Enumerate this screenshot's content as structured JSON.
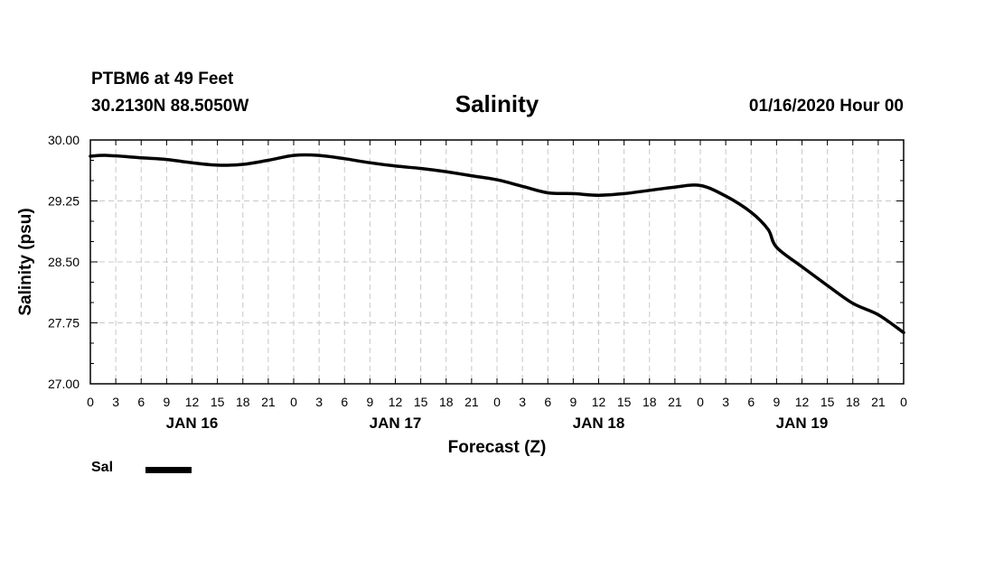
{
  "header": {
    "station": "PTBM6 at 49 Feet",
    "coordinates": "30.2130N 88.5050W",
    "issued": "01/16/2020 Hour 00"
  },
  "chart_data": {
    "type": "line",
    "title": "Salinity",
    "xlabel": "Forecast (Z)",
    "ylabel": "Salinity (psu)",
    "ylim": [
      27.0,
      30.0
    ],
    "yticks": [
      "30.00",
      "29.25",
      "28.50",
      "27.75",
      "27.00"
    ],
    "xlim_hours": [
      0,
      96
    ],
    "xtick_labels": [
      "0",
      "3",
      "6",
      "9",
      "12",
      "15",
      "18",
      "21",
      "0",
      "3",
      "6",
      "9",
      "12",
      "15",
      "18",
      "21",
      "0",
      "3",
      "6",
      "9",
      "12",
      "15",
      "18",
      "21",
      "0",
      "3",
      "6",
      "9",
      "12",
      "15",
      "18",
      "21",
      "0"
    ],
    "date_labels": [
      {
        "label": "JAN 16",
        "hour": 12
      },
      {
        "label": "JAN 17",
        "hour": 36
      },
      {
        "label": "JAN 18",
        "hour": 60
      },
      {
        "label": "JAN 19",
        "hour": 84
      }
    ],
    "grid": true,
    "legend_position": "bottom-left",
    "series": [
      {
        "name": "Sal",
        "color": "#000000",
        "x": [
          0,
          2,
          6,
          9,
          12,
          15,
          18,
          21,
          24,
          27,
          30,
          33,
          36,
          39,
          42,
          45,
          48,
          51,
          54,
          57,
          60,
          63,
          66,
          69,
          72,
          75,
          78,
          80,
          81,
          84,
          87,
          90,
          93,
          96
        ],
        "values": [
          29.8,
          29.81,
          29.78,
          29.76,
          29.72,
          29.69,
          29.7,
          29.75,
          29.81,
          29.81,
          29.77,
          29.72,
          29.68,
          29.65,
          29.61,
          29.56,
          29.51,
          29.43,
          29.35,
          29.34,
          29.32,
          29.34,
          29.38,
          29.42,
          29.44,
          29.31,
          29.11,
          28.9,
          28.68,
          28.44,
          28.21,
          27.99,
          27.85,
          27.63
        ]
      }
    ]
  }
}
